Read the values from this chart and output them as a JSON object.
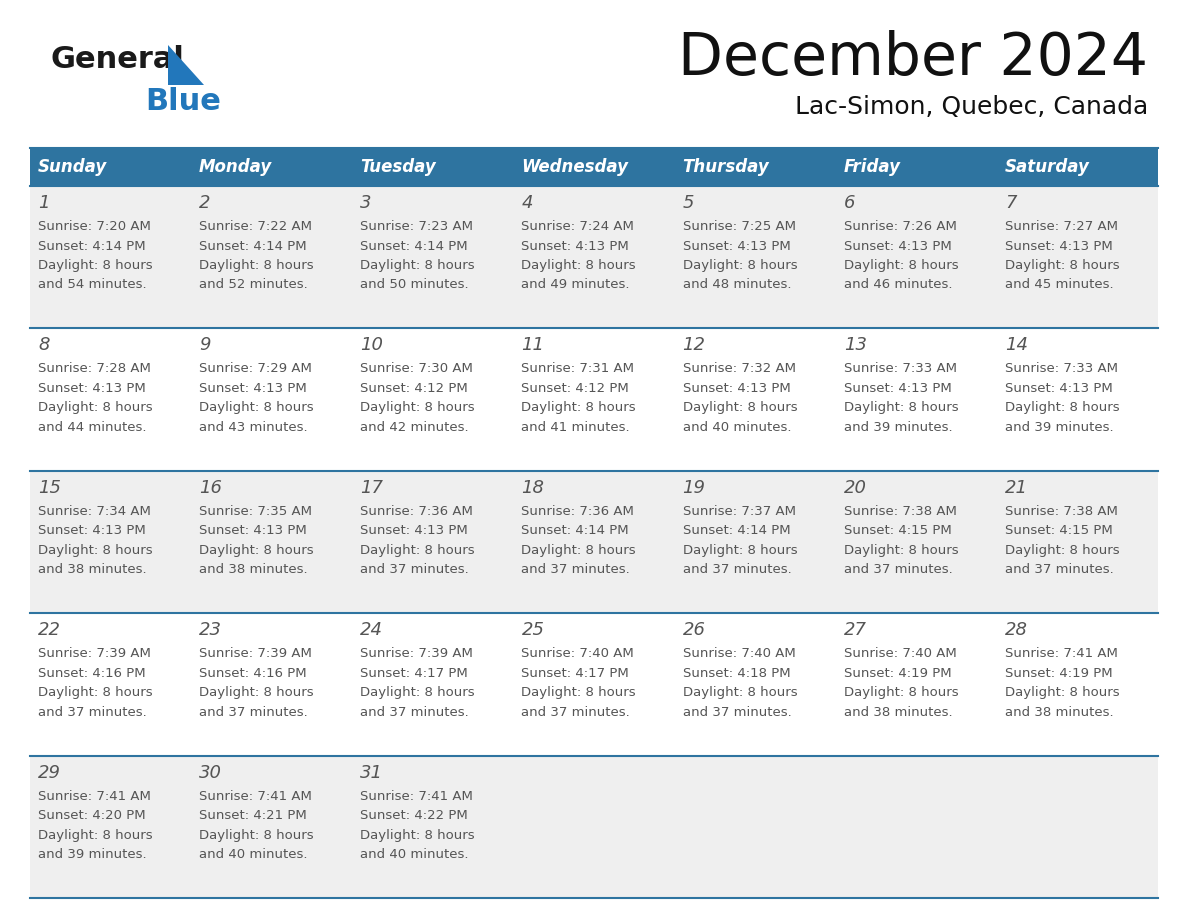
{
  "title": "December 2024",
  "subtitle": "Lac-Simon, Quebec, Canada",
  "header_bg": "#2E74A0",
  "header_text_color": "#FFFFFF",
  "day_names": [
    "Sunday",
    "Monday",
    "Tuesday",
    "Wednesday",
    "Thursday",
    "Friday",
    "Saturday"
  ],
  "row_bg_even": "#EFEFEF",
  "row_bg_odd": "#FFFFFF",
  "cell_text_color": "#555555",
  "divider_color": "#2E74A0",
  "logo_general_color": "#1a1a1a",
  "logo_blue_color": "#2277BB",
  "weeks": [
    [
      {
        "day": 1,
        "sunrise": "7:20 AM",
        "sunset": "4:14 PM",
        "daylight": "8 hours and 54 minutes."
      },
      {
        "day": 2,
        "sunrise": "7:22 AM",
        "sunset": "4:14 PM",
        "daylight": "8 hours and 52 minutes."
      },
      {
        "day": 3,
        "sunrise": "7:23 AM",
        "sunset": "4:14 PM",
        "daylight": "8 hours and 50 minutes."
      },
      {
        "day": 4,
        "sunrise": "7:24 AM",
        "sunset": "4:13 PM",
        "daylight": "8 hours and 49 minutes."
      },
      {
        "day": 5,
        "sunrise": "7:25 AM",
        "sunset": "4:13 PM",
        "daylight": "8 hours and 48 minutes."
      },
      {
        "day": 6,
        "sunrise": "7:26 AM",
        "sunset": "4:13 PM",
        "daylight": "8 hours and 46 minutes."
      },
      {
        "day": 7,
        "sunrise": "7:27 AM",
        "sunset": "4:13 PM",
        "daylight": "8 hours and 45 minutes."
      }
    ],
    [
      {
        "day": 8,
        "sunrise": "7:28 AM",
        "sunset": "4:13 PM",
        "daylight": "8 hours and 44 minutes."
      },
      {
        "day": 9,
        "sunrise": "7:29 AM",
        "sunset": "4:13 PM",
        "daylight": "8 hours and 43 minutes."
      },
      {
        "day": 10,
        "sunrise": "7:30 AM",
        "sunset": "4:12 PM",
        "daylight": "8 hours and 42 minutes."
      },
      {
        "day": 11,
        "sunrise": "7:31 AM",
        "sunset": "4:12 PM",
        "daylight": "8 hours and 41 minutes."
      },
      {
        "day": 12,
        "sunrise": "7:32 AM",
        "sunset": "4:13 PM",
        "daylight": "8 hours and 40 minutes."
      },
      {
        "day": 13,
        "sunrise": "7:33 AM",
        "sunset": "4:13 PM",
        "daylight": "8 hours and 39 minutes."
      },
      {
        "day": 14,
        "sunrise": "7:33 AM",
        "sunset": "4:13 PM",
        "daylight": "8 hours and 39 minutes."
      }
    ],
    [
      {
        "day": 15,
        "sunrise": "7:34 AM",
        "sunset": "4:13 PM",
        "daylight": "8 hours and 38 minutes."
      },
      {
        "day": 16,
        "sunrise": "7:35 AM",
        "sunset": "4:13 PM",
        "daylight": "8 hours and 38 minutes."
      },
      {
        "day": 17,
        "sunrise": "7:36 AM",
        "sunset": "4:13 PM",
        "daylight": "8 hours and 37 minutes."
      },
      {
        "day": 18,
        "sunrise": "7:36 AM",
        "sunset": "4:14 PM",
        "daylight": "8 hours and 37 minutes."
      },
      {
        "day": 19,
        "sunrise": "7:37 AM",
        "sunset": "4:14 PM",
        "daylight": "8 hours and 37 minutes."
      },
      {
        "day": 20,
        "sunrise": "7:38 AM",
        "sunset": "4:15 PM",
        "daylight": "8 hours and 37 minutes."
      },
      {
        "day": 21,
        "sunrise": "7:38 AM",
        "sunset": "4:15 PM",
        "daylight": "8 hours and 37 minutes."
      }
    ],
    [
      {
        "day": 22,
        "sunrise": "7:39 AM",
        "sunset": "4:16 PM",
        "daylight": "8 hours and 37 minutes."
      },
      {
        "day": 23,
        "sunrise": "7:39 AM",
        "sunset": "4:16 PM",
        "daylight": "8 hours and 37 minutes."
      },
      {
        "day": 24,
        "sunrise": "7:39 AM",
        "sunset": "4:17 PM",
        "daylight": "8 hours and 37 minutes."
      },
      {
        "day": 25,
        "sunrise": "7:40 AM",
        "sunset": "4:17 PM",
        "daylight": "8 hours and 37 minutes."
      },
      {
        "day": 26,
        "sunrise": "7:40 AM",
        "sunset": "4:18 PM",
        "daylight": "8 hours and 37 minutes."
      },
      {
        "day": 27,
        "sunrise": "7:40 AM",
        "sunset": "4:19 PM",
        "daylight": "8 hours and 38 minutes."
      },
      {
        "day": 28,
        "sunrise": "7:41 AM",
        "sunset": "4:19 PM",
        "daylight": "8 hours and 38 minutes."
      }
    ],
    [
      {
        "day": 29,
        "sunrise": "7:41 AM",
        "sunset": "4:20 PM",
        "daylight": "8 hours and 39 minutes."
      },
      {
        "day": 30,
        "sunrise": "7:41 AM",
        "sunset": "4:21 PM",
        "daylight": "8 hours and 40 minutes."
      },
      {
        "day": 31,
        "sunrise": "7:41 AM",
        "sunset": "4:22 PM",
        "daylight": "8 hours and 40 minutes."
      },
      null,
      null,
      null,
      null
    ]
  ]
}
